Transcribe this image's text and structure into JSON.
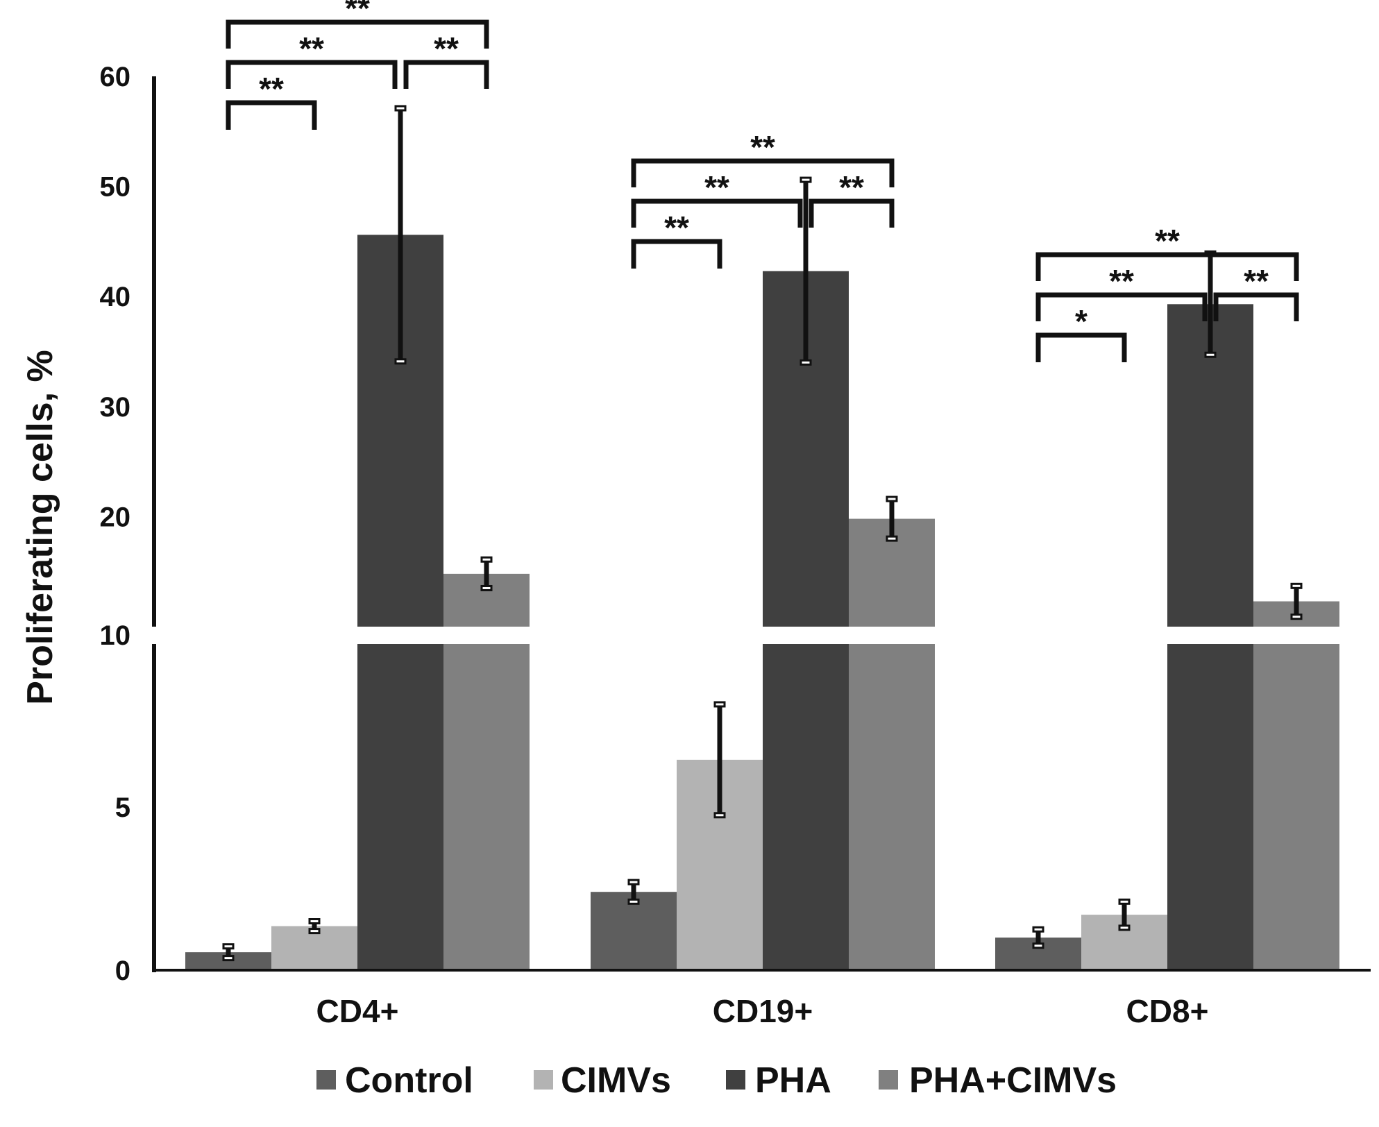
{
  "chart_data": {
    "type": "bar",
    "title": "",
    "xlabel": "",
    "ylabel": "Proliferating cells, %",
    "axis_break": {
      "lower_range": [
        0,
        10
      ],
      "upper_range": [
        10,
        60
      ]
    },
    "yticks_lower": [
      "0",
      "5",
      "10"
    ],
    "yticks_upper": [
      "20",
      "30",
      "40",
      "50",
      "60"
    ],
    "categories": [
      "CD4+",
      "CD19+",
      "CD8+"
    ],
    "series": [
      {
        "name": "Control",
        "color": "#5e5e5e",
        "values": [
          0.55,
          2.4,
          1.0
        ],
        "errors": [
          0.18,
          0.3,
          0.25
        ]
      },
      {
        "name": "CIMVs",
        "color": "#b3b3b3",
        "values": [
          1.35,
          6.45,
          1.7
        ],
        "errors": [
          0.15,
          1.7,
          0.4
        ]
      },
      {
        "name": "PHA",
        "color": "#404040",
        "values": [
          45.6,
          42.3,
          39.3
        ],
        "errors": [
          11.5,
          8.3,
          4.6
        ]
      },
      {
        "name": "PHA+CIMVs",
        "color": "#808080",
        "values": [
          14.8,
          19.8,
          12.3
        ],
        "errors": [
          1.3,
          1.8,
          1.4
        ]
      }
    ],
    "legend_position": "bottom",
    "significance": [
      {
        "category": "CD4+",
        "comparisons": [
          {
            "from": "Control",
            "to": "CIMVs",
            "label": "**"
          },
          {
            "from": "Control",
            "to": "PHA",
            "label": "**"
          },
          {
            "from": "PHA",
            "to": "PHA+CIMVs",
            "label": "**"
          },
          {
            "from": "Control",
            "to": "PHA+CIMVs",
            "label": "**"
          }
        ]
      },
      {
        "category": "CD19+",
        "comparisons": [
          {
            "from": "Control",
            "to": "CIMVs",
            "label": "**"
          },
          {
            "from": "Control",
            "to": "PHA",
            "label": "**"
          },
          {
            "from": "PHA",
            "to": "PHA+CIMVs",
            "label": "**"
          },
          {
            "from": "Control",
            "to": "PHA+CIMVs",
            "label": "**"
          }
        ]
      },
      {
        "category": "CD8+",
        "comparisons": [
          {
            "from": "Control",
            "to": "CIMVs",
            "label": "*"
          },
          {
            "from": "Control",
            "to": "PHA",
            "label": "**"
          },
          {
            "from": "PHA",
            "to": "PHA+CIMVs",
            "label": "**"
          },
          {
            "from": "Control",
            "to": "PHA+CIMVs",
            "label": "**"
          }
        ]
      }
    ]
  }
}
